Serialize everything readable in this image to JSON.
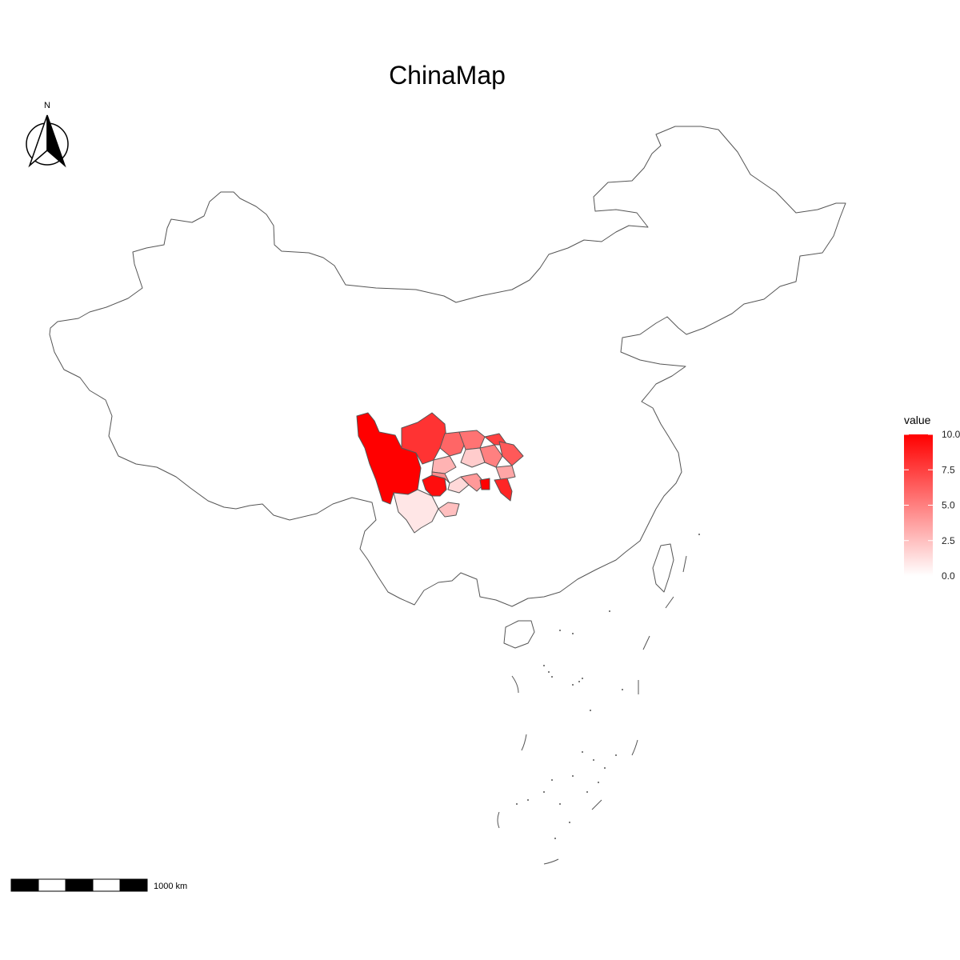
{
  "title": "ChinaMap",
  "north_arrow": {
    "label": "N"
  },
  "scale_bar": {
    "label": "1000 km"
  },
  "legend": {
    "title": "value",
    "ticks": [
      "0.0",
      "2.5",
      "5.0",
      "7.5",
      "10.0"
    ],
    "tick_values": [
      0,
      2.5,
      5,
      7.5,
      10
    ],
    "range": [
      0,
      10
    ],
    "low_color": "#ffffff",
    "high_color": "#ff0000"
  },
  "chart_data": {
    "type": "choropleth",
    "title": "ChinaMap",
    "fill_variable": "value",
    "value_range": [
      0,
      10
    ],
    "colors": {
      "low": "#ffffff",
      "high": "#ff0000",
      "outline": "#555555"
    },
    "regions": [
      {
        "value": 10.0
      },
      {
        "value": 8.0
      },
      {
        "value": 1.0
      },
      {
        "value": 9.5
      },
      {
        "value": 6.0
      },
      {
        "value": 5.5
      },
      {
        "value": 3.0
      },
      {
        "value": 4.5
      },
      {
        "value": 2.0
      },
      {
        "value": 5.0
      },
      {
        "value": 7.5
      },
      {
        "value": 6.5
      },
      {
        "value": 3.5
      },
      {
        "value": 1.5
      },
      {
        "value": 8.5
      },
      {
        "value": 4.0
      },
      {
        "value": 10.0
      },
      {
        "value": 2.5
      }
    ]
  }
}
